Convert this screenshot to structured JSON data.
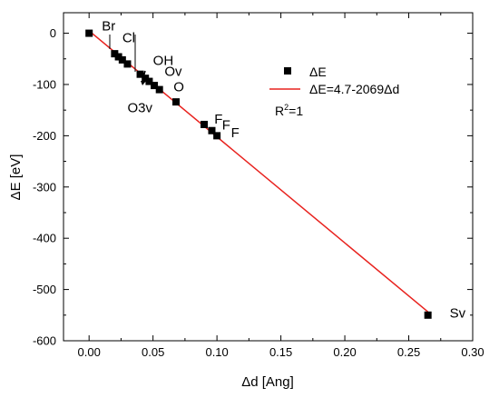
{
  "chart_data": {
    "type": "scatter",
    "xlabel": "Δd [Ang]",
    "ylabel": "ΔE [eV]",
    "xlim": [
      -0.02,
      0.3
    ],
    "ylim": [
      -600,
      40
    ],
    "xticks": [
      0.0,
      0.05,
      0.1,
      0.15,
      0.2,
      0.25,
      0.3
    ],
    "xtick_labels": [
      "0.00",
      "0.05",
      "0.10",
      "0.15",
      "0.20",
      "0.25",
      "0.30"
    ],
    "yticks": [
      0,
      -100,
      -200,
      -300,
      -400,
      -500,
      -600
    ],
    "ytick_labels": [
      "0",
      "-100",
      "-200",
      "-300",
      "-400",
      "-500",
      "-600"
    ],
    "grid": false,
    "legend_position": "top-right",
    "series": [
      {
        "name": "ΔE",
        "kind": "scatter",
        "color": "#000000",
        "x": [
          0.0,
          0.02,
          0.023,
          0.026,
          0.03,
          0.04,
          0.044,
          0.047,
          0.051,
          0.055,
          0.068,
          0.09,
          0.096,
          0.1,
          0.265
        ],
        "y": [
          0,
          -40,
          -46,
          -52,
          -60,
          -80,
          -88,
          -94,
          -102,
          -110,
          -134,
          -178,
          -190,
          -200,
          -550
        ]
      },
      {
        "name": "ΔE=4.7-2069Δd",
        "kind": "line",
        "color": "#e8221e",
        "x": [
          0.0,
          0.265
        ],
        "y": [
          4.7,
          -543.6
        ]
      }
    ],
    "annotations": [
      {
        "text": "Br",
        "x": 0.01,
        "y": 5
      },
      {
        "text": "Cl",
        "x": 0.026,
        "y": -18
      },
      {
        "text": "OH",
        "x": 0.05,
        "y": -62
      },
      {
        "text": "Ov",
        "x": 0.059,
        "y": -83
      },
      {
        "text": "O",
        "x": 0.066,
        "y": -113
      },
      {
        "text": "O3v",
        "x": 0.03,
        "y": -154
      },
      {
        "text": "F",
        "x": 0.098,
        "y": -176
      },
      {
        "text": "F",
        "x": 0.104,
        "y": -188
      },
      {
        "text": "F",
        "x": 0.111,
        "y": -203
      },
      {
        "text": "Sv",
        "x": 0.282,
        "y": -555
      }
    ],
    "legend": {
      "entries": [
        "ΔE",
        "ΔE=4.7-2069Δd"
      ],
      "r2_text": "R",
      "r2_sup": "2",
      "r2_value": "=1"
    }
  }
}
